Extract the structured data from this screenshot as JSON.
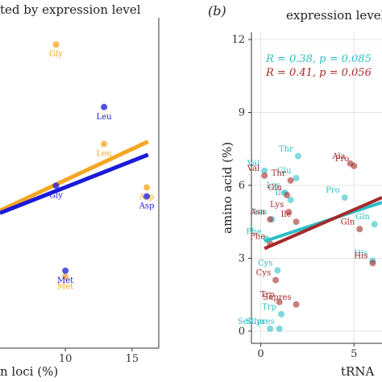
{
  "panel_a": {
    "title_fragment": "ted by expression level",
    "xlabel_fragment": "n loci (%)"
  },
  "panel_b": {
    "panel_label": "(b)",
    "title_fragment": "expression level:",
    "ylabel": "amino acid (%)",
    "xlabel_fragment": "tRNA",
    "stats": [
      {
        "text": "R = 0.38,  p = 0.085",
        "color": "#2BBFC8"
      },
      {
        "text": "R = 0.41,  p = 0.056",
        "color": "#A52A2A"
      }
    ]
  },
  "chart_data": [
    {
      "type": "scatter",
      "title": "ted by expression level",
      "xlabel": "n loci (%)",
      "xticks": [
        10,
        15
      ],
      "xlim": [
        5.1,
        17.0
      ],
      "ylim": [
        -5.5,
        50
      ],
      "series": [
        {
          "color": "#F5A623",
          "points": [
            {
              "label": "Gly",
              "x": 9.3,
              "y": 45.5
            },
            {
              "label": "Leu",
              "x": 12.9,
              "y": 28.8
            },
            {
              "label": "Asp",
              "x": 16.1,
              "y": 21.5
            },
            {
              "label": "Met",
              "x": 10.0,
              "y": 6.5
            }
          ],
          "fit": {
            "x": [
              5.1,
              16.2
            ],
            "y": [
              17.6,
              29.2
            ]
          }
        },
        {
          "color": "#1A1AD9",
          "points": [
            {
              "label": "Leu",
              "x": 12.9,
              "y": 35.0
            },
            {
              "label": "Gly",
              "x": 9.3,
              "y": 21.8
            },
            {
              "label": "Asp",
              "x": 16.1,
              "y": 20.0
            },
            {
              "label": "Met",
              "x": 10.0,
              "y": 7.5
            }
          ],
          "fit": {
            "x": [
              5.1,
              16.2
            ],
            "y": [
              17.2,
              27.0
            ]
          }
        }
      ]
    },
    {
      "type": "scatter",
      "title": "expression level:",
      "xlabel": "tRNA",
      "ylabel": "amino acid (%)",
      "xticks": [
        0,
        5
      ],
      "yticks": [
        0,
        3,
        6,
        9,
        12
      ],
      "xlim": [
        -0.5,
        6.5
      ],
      "ylim": [
        -0.5,
        12.3
      ],
      "grid": true,
      "series": [
        {
          "color": "#2BBFC8",
          "stat": "R = 0.38,  p = 0.085",
          "points": [
            {
              "label": "Thr",
              "x": 2.0,
              "y": 7.2
            },
            {
              "label": "Val",
              "x": 0.2,
              "y": 6.6
            },
            {
              "label": "Glu",
              "x": 1.9,
              "y": 6.3
            },
            {
              "label": "Lys",
              "x": 1.3,
              "y": 5.7
            },
            {
              "label": "Ile",
              "x": 1.6,
              "y": 5.4
            },
            {
              "label": "Pro",
              "x": 4.5,
              "y": 5.5
            },
            {
              "label": "Asn",
              "x": 0.6,
              "y": 4.6
            },
            {
              "label": "Gln",
              "x": 6.1,
              "y": 4.4
            },
            {
              "label": "Phe",
              "x": 0.3,
              "y": 3.8
            },
            {
              "label": "Cys",
              "x": 0.9,
              "y": 2.5
            },
            {
              "label": "His",
              "x": 6.0,
              "y": 2.9
            },
            {
              "label": "Trp",
              "x": 1.1,
              "y": 0.7
            },
            {
              "label": "Supres",
              "x": 1.0,
              "y": 0.1
            },
            {
              "label": "SelCys",
              "x": 0.5,
              "y": 0.1
            }
          ],
          "fit": {
            "x": [
              0.2,
              6.5
            ],
            "y": [
              3.7,
              5.3
            ]
          }
        },
        {
          "color": "#A52A2A",
          "stat": "R = 0.41,  p = 0.056",
          "points": [
            {
              "label": "Ala",
              "x": 4.8,
              "y": 6.9
            },
            {
              "label": "Pro",
              "x": 5.0,
              "y": 6.8
            },
            {
              "label": "Val",
              "x": 0.2,
              "y": 6.4
            },
            {
              "label": "Thr",
              "x": 1.6,
              "y": 6.2
            },
            {
              "label": "Glu",
              "x": 1.4,
              "y": 5.6
            },
            {
              "label": "Lys",
              "x": 1.5,
              "y": 4.9
            },
            {
              "label": "Asn",
              "x": 0.5,
              "y": 4.6
            },
            {
              "label": "Ile",
              "x": 1.9,
              "y": 4.5
            },
            {
              "label": "Gln",
              "x": 5.3,
              "y": 4.2
            },
            {
              "label": "Phe",
              "x": 0.5,
              "y": 3.6
            },
            {
              "label": "Cys",
              "x": 0.8,
              "y": 2.1
            },
            {
              "label": "His",
              "x": 6.0,
              "y": 2.8
            },
            {
              "label": "Trp",
              "x": 1.0,
              "y": 1.2
            },
            {
              "label": "Supres",
              "x": 1.9,
              "y": 1.1
            }
          ],
          "fit": {
            "x": [
              0.2,
              6.5
            ],
            "y": [
              3.4,
              5.5
            ]
          }
        }
      ]
    }
  ]
}
